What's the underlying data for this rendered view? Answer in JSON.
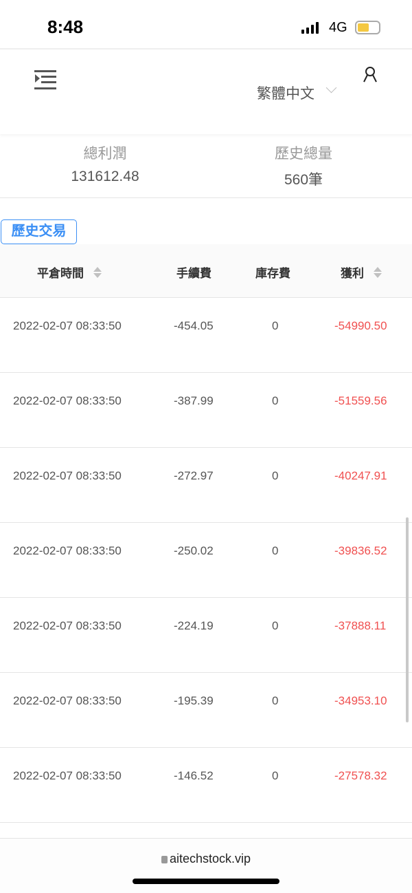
{
  "status_bar": {
    "time": "8:48",
    "network": "4G",
    "battery_level": 0.45,
    "battery_color": "#f4c842"
  },
  "header": {
    "language": "繁體中文"
  },
  "stats": {
    "total_profit_label": "總利潤",
    "total_profit_value": "131612.48",
    "history_total_label": "歷史總量",
    "history_total_value": "560筆"
  },
  "tab": {
    "label": "歷史交易"
  },
  "table": {
    "headers": [
      "平倉時間",
      "手續費",
      "庫存費",
      "獲利"
    ],
    "rows": [
      [
        "2022-02-07 08:33:50",
        "-454.05",
        "0",
        "-54990.50"
      ],
      [
        "2022-02-07 08:33:50",
        "-387.99",
        "0",
        "-51559.56"
      ],
      [
        "2022-02-07 08:33:50",
        "-272.97",
        "0",
        "-40247.91"
      ],
      [
        "2022-02-07 08:33:50",
        "-250.02",
        "0",
        "-39836.52"
      ],
      [
        "2022-02-07 08:33:50",
        "-224.19",
        "0",
        "-37888.11"
      ],
      [
        "2022-02-07 08:33:50",
        "-195.39",
        "0",
        "-34953.10"
      ],
      [
        "2022-02-07 08:33:50",
        "-146.52",
        "0",
        "-27578.32"
      ]
    ]
  },
  "browser": {
    "url": "aitechstock.vip"
  },
  "colors": {
    "accent": "#3b8ff5",
    "loss": "#f05050"
  }
}
